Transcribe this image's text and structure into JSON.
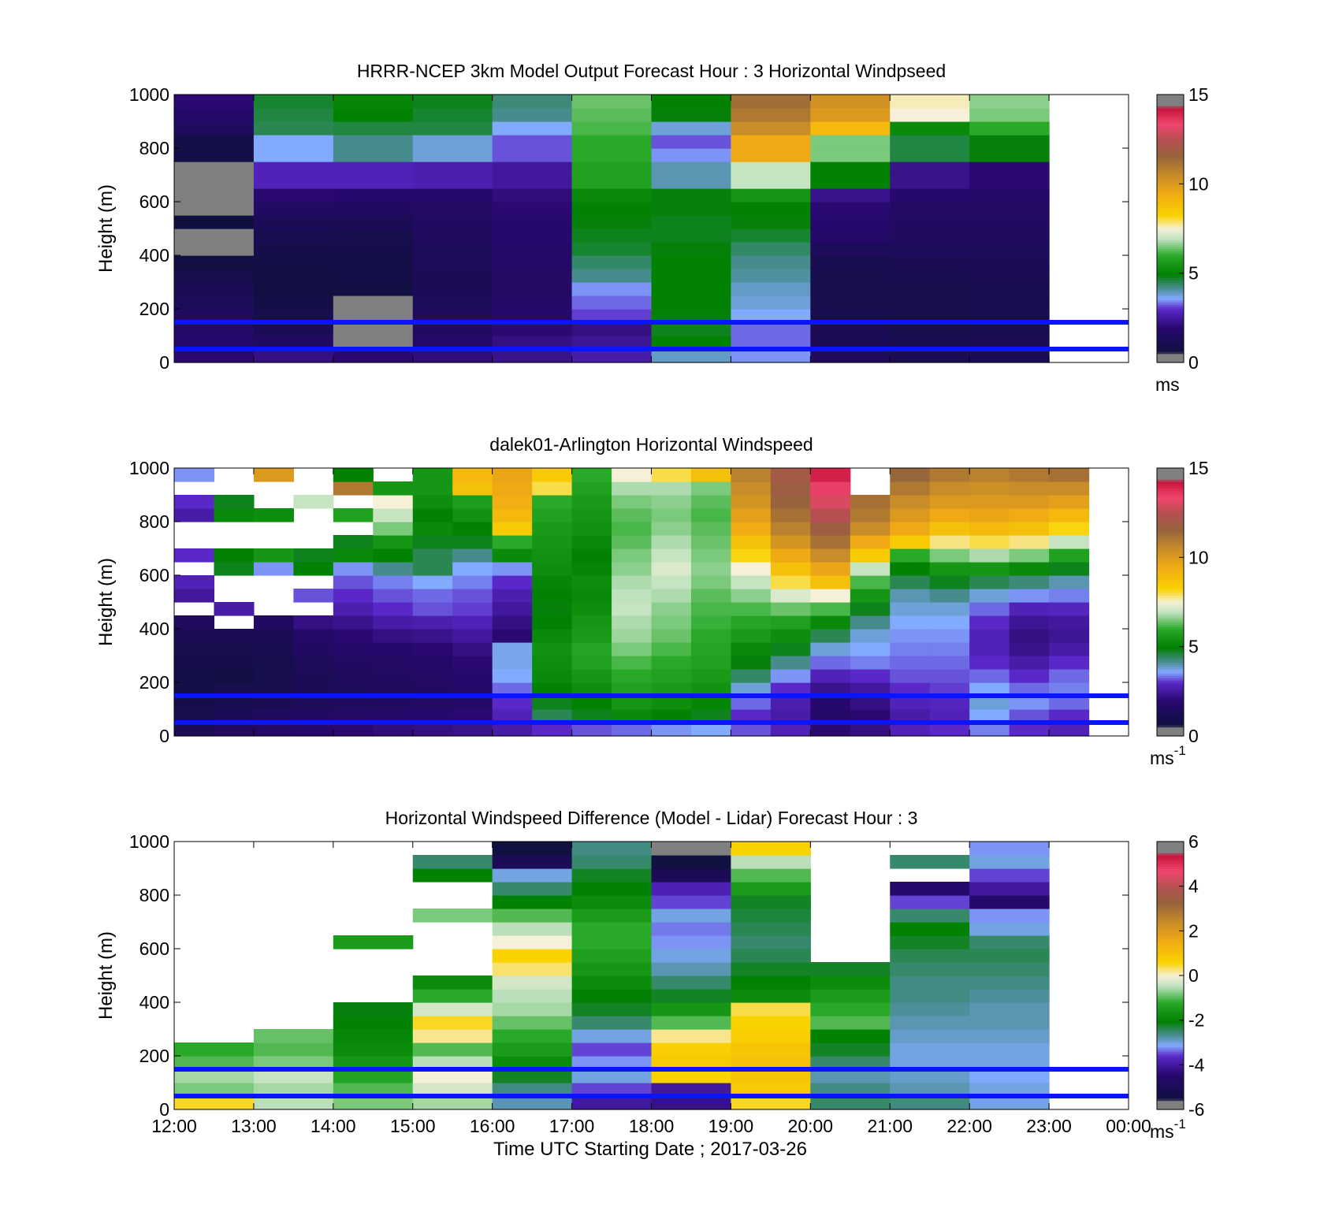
{
  "figure": {
    "xlabel": "Time UTC  Starting Date ; 2017-03-26"
  },
  "chart_data": [
    {
      "type": "heatmap",
      "title": "HRRR-NCEP 3km Model Output   Forecast Hour : 3 Horizontal Windpseed",
      "ylabel": "Height (m)",
      "unit_label": "ms",
      "unit_superscript": "",
      "ylim": [
        0,
        1000
      ],
      "yticks": [
        0,
        200,
        400,
        600,
        800,
        1000
      ],
      "xlim": [
        12,
        24
      ],
      "xticklabels": [],
      "colorbar": {
        "min": 0,
        "max": 15,
        "ticks": [
          0,
          5,
          10,
          15
        ]
      },
      "reference_heights_m": [
        50,
        150
      ],
      "x_hours": [
        12,
        13,
        14,
        15,
        16,
        17,
        18,
        19,
        20,
        21,
        22
      ],
      "y_heights_m": [
        0,
        50,
        100,
        150,
        200,
        250,
        300,
        350,
        400,
        450,
        500,
        550,
        600,
        650,
        700,
        750,
        800,
        850,
        900,
        950
      ],
      "values": [
        [
          2.0,
          1.9,
          1.8,
          1.6,
          1.4,
          1.2,
          1.0,
          0.7,
          0.1,
          0.1,
          0.6,
          0.1,
          0.1,
          0.1,
          0.1,
          0.8,
          0.8,
          1.5,
          1.8,
          2.0
        ],
        [
          2.2,
          1.6,
          1.3,
          1.0,
          0.8,
          0.7,
          0.7,
          0.8,
          0.9,
          1.1,
          1.3,
          1.6,
          2.0,
          2.8,
          2.8,
          3.6,
          3.6,
          4.5,
          4.6,
          4.7
        ],
        [
          2.0,
          0.1,
          0.1,
          0.1,
          0.1,
          0.7,
          0.8,
          0.8,
          0.9,
          1.0,
          1.3,
          1.6,
          1.9,
          2.8,
          2.8,
          4.2,
          4.2,
          4.6,
          5.0,
          5.1
        ],
        [
          2.1,
          1.8,
          1.6,
          1.5,
          1.4,
          1.3,
          1.3,
          1.4,
          1.4,
          1.5,
          1.6,
          1.7,
          1.9,
          2.7,
          2.7,
          3.8,
          3.8,
          4.6,
          4.7,
          4.8
        ],
        [
          2.3,
          2.2,
          2.0,
          1.9,
          1.8,
          1.7,
          1.7,
          1.8,
          1.8,
          1.9,
          1.9,
          2.0,
          2.1,
          2.5,
          2.5,
          3.2,
          3.2,
          3.6,
          4.2,
          4.3
        ],
        [
          2.6,
          2.4,
          2.2,
          3.1,
          3.3,
          3.5,
          4.2,
          4.4,
          4.7,
          4.8,
          4.9,
          5.0,
          5.2,
          5.8,
          5.8,
          6.0,
          6.0,
          6.2,
          6.3,
          6.4
        ],
        [
          3.9,
          5.0,
          4.8,
          4.9,
          5.0,
          5.0,
          5.0,
          5.0,
          4.9,
          4.8,
          4.8,
          4.9,
          4.9,
          4.0,
          4.0,
          3.5,
          3.2,
          3.8,
          4.9,
          5.0
        ],
        [
          3.5,
          3.3,
          3.3,
          3.6,
          3.8,
          3.9,
          4.1,
          4.2,
          4.4,
          4.7,
          4.9,
          5.0,
          5.5,
          7.0,
          7.0,
          9.5,
          9.5,
          10.5,
          11.0,
          11.3
        ],
        [
          1.5,
          1.3,
          1.2,
          1.1,
          1.0,
          1.0,
          1.0,
          1.1,
          1.4,
          1.8,
          1.9,
          2.0,
          2.3,
          5.0,
          5.0,
          6.5,
          6.5,
          9.0,
          10.0,
          10.3
        ],
        [
          1.2,
          1.1,
          1.0,
          1.0,
          1.0,
          1.0,
          1.1,
          1.2,
          1.4,
          1.5,
          1.6,
          1.7,
          1.9,
          2.3,
          2.3,
          4.6,
          4.6,
          5.2,
          7.5,
          7.6
        ],
        [
          1.3,
          1.2,
          1.1,
          1.1,
          1.1,
          1.1,
          1.2,
          1.3,
          1.4,
          1.5,
          1.6,
          1.7,
          1.8,
          2.0,
          2.0,
          4.9,
          4.9,
          6.0,
          6.5,
          6.6
        ]
      ]
    },
    {
      "type": "heatmap",
      "title": "dalek01-Arlington  Horizontal Windspeed",
      "ylabel": "Height (m)",
      "unit_label": "ms",
      "unit_superscript": "-1",
      "ylim": [
        0,
        1000
      ],
      "yticks": [
        0,
        200,
        400,
        600,
        800,
        1000
      ],
      "xlim": [
        12,
        24
      ],
      "xticklabels": [],
      "colorbar": {
        "min": 0,
        "max": 15,
        "ticks": [
          0,
          5,
          10,
          15
        ]
      },
      "reference_heights_m": [
        50,
        150
      ],
      "x_hours": [
        12.0,
        12.5,
        13.0,
        13.5,
        14.0,
        14.5,
        15.0,
        15.5,
        16.0,
        16.5,
        17.0,
        17.5,
        18.0,
        18.5,
        19.0,
        19.5,
        20.0,
        20.5,
        21.0,
        21.5,
        22.0,
        22.5,
        23.0
      ],
      "y_heights_m": [
        0,
        50,
        100,
        150,
        200,
        250,
        300,
        350,
        400,
        450,
        500,
        550,
        600,
        650,
        700,
        750,
        800,
        850,
        900,
        950
      ],
      "values": [
        [
          1.2,
          1.0,
          0.9,
          0.8,
          0.8,
          0.9,
          1.0,
          1.2,
          1.5,
          null,
          2.5,
          2.8,
          null,
          3.0,
          null,
          null,
          2.6,
          3.0,
          null,
          3.5
        ],
        [
          1.6,
          1.3,
          1.1,
          1.0,
          0.7,
          0.9,
          1.0,
          1.2,
          null,
          2.6,
          null,
          null,
          4.8,
          5.0,
          null,
          null,
          5.2,
          4.8,
          null,
          null
        ],
        [
          1.8,
          1.5,
          1.2,
          1.0,
          1.0,
          1.0,
          1.1,
          1.3,
          1.6,
          null,
          null,
          null,
          3.5,
          5.5,
          null,
          null,
          5.3,
          null,
          null,
          10.0
        ],
        [
          1.9,
          1.6,
          1.4,
          1.3,
          1.3,
          1.4,
          1.6,
          1.8,
          2.2,
          null,
          3.2,
          null,
          5.0,
          4.8,
          null,
          null,
          null,
          7.0,
          null,
          null
        ],
        [
          2.0,
          1.7,
          1.5,
          1.4,
          1.5,
          1.6,
          1.8,
          2.0,
          2.3,
          2.7,
          3.0,
          3.2,
          3.5,
          5.2,
          4.8,
          null,
          5.8,
          null,
          11.0,
          5.0
        ],
        [
          2.1,
          1.8,
          1.6,
          1.5,
          1.6,
          1.7,
          1.9,
          2.2,
          2.6,
          3.0,
          3.2,
          3.4,
          4.2,
          5.0,
          5.5,
          6.5,
          7.0,
          7.5,
          5.5,
          null
        ],
        [
          2.2,
          1.9,
          1.7,
          1.6,
          1.7,
          1.8,
          2.0,
          2.3,
          2.7,
          3.2,
          3.3,
          3.6,
          4.5,
          4.5,
          4.8,
          5.2,
          5.0,
          5.3,
          5.5,
          5.5
        ],
        [
          2.3,
          2.0,
          1.8,
          1.8,
          1.9,
          2.0,
          2.2,
          2.5,
          2.8,
          3.1,
          3.2,
          3.4,
          3.6,
          4.2,
          4.8,
          5.0,
          5.4,
          5.7,
          8.8,
          9.0
        ],
        [
          2.6,
          2.8,
          3.0,
          3.3,
          3.6,
          3.7,
          3.7,
          2.0,
          2.2,
          2.5,
          2.7,
          3.0,
          3.5,
          5.2,
          6.0,
          8.5,
          9.0,
          9.3,
          9.5,
          9.6
        ],
        [
          3.0,
          4.5,
          4.8,
          5.0,
          5.2,
          5.3,
          5.4,
          5.2,
          5.0,
          4.9,
          5.0,
          5.1,
          5.3,
          5.4,
          5.5,
          5.6,
          5.8,
          6.0,
          8.0,
          8.5
        ],
        [
          3.2,
          4.8,
          5.0,
          5.3,
          5.5,
          5.8,
          5.9,
          5.6,
          5.5,
          5.3,
          5.2,
          5.3,
          5.1,
          5.0,
          5.2,
          5.4,
          5.5,
          5.6,
          5.8,
          6.0
        ],
        [
          3.3,
          5.2,
          5.5,
          5.8,
          6.0,
          6.2,
          6.5,
          6.7,
          6.8,
          7.0,
          6.9,
          6.8,
          6.6,
          6.5,
          6.3,
          6.2,
          6.3,
          6.5,
          6.8,
          7.5
        ],
        [
          3.5,
          5.0,
          5.3,
          5.6,
          5.8,
          6.0,
          6.2,
          6.4,
          6.5,
          6.6,
          6.8,
          7.0,
          7.2,
          7.0,
          6.8,
          6.6,
          6.5,
          6.6,
          6.8,
          8.0
        ],
        [
          3.6,
          4.8,
          5.1,
          5.4,
          5.6,
          5.8,
          5.9,
          6.0,
          6.1,
          6.2,
          6.3,
          6.5,
          6.6,
          6.5,
          6.4,
          6.3,
          6.2,
          6.3,
          6.5,
          8.8
        ],
        [
          3.2,
          3.0,
          3.3,
          3.8,
          4.4,
          4.9,
          5.2,
          5.6,
          5.9,
          6.2,
          6.6,
          7.0,
          7.5,
          8.2,
          8.8,
          9.4,
          9.8,
          10.2,
          10.5,
          10.8
        ],
        [
          2.8,
          2.6,
          2.7,
          3.0,
          3.5,
          4.2,
          4.8,
          5.3,
          5.8,
          6.4,
          7.2,
          8.0,
          8.8,
          9.5,
          10.2,
          10.8,
          11.2,
          11.6,
          11.8,
          12.0
        ],
        [
          2.0,
          1.8,
          1.9,
          2.3,
          2.8,
          3.3,
          3.8,
          4.5,
          5.2,
          6.2,
          7.5,
          8.8,
          9.6,
          10.5,
          11.2,
          11.8,
          12.5,
          13.0,
          13.5,
          14.0
        ],
        [
          2.2,
          2.0,
          2.2,
          2.5,
          3.0,
          3.4,
          3.6,
          3.8,
          4.2,
          4.8,
          5.5,
          6.2,
          7.0,
          8.5,
          9.5,
          10.5,
          11.0,
          11.2,
          null,
          null
        ],
        [
          2.8,
          2.6,
          2.8,
          3.0,
          3.2,
          3.3,
          3.4,
          3.5,
          3.6,
          3.8,
          4.0,
          4.5,
          5.0,
          6.0,
          8.5,
          9.5,
          10.0,
          10.5,
          11.0,
          11.5
        ],
        [
          3.0,
          2.8,
          2.9,
          3.1,
          3.2,
          3.3,
          3.4,
          3.5,
          3.6,
          3.8,
          4.2,
          4.8,
          5.5,
          6.5,
          7.8,
          8.8,
          9.5,
          10.0,
          10.5,
          11.0
        ],
        [
          3.4,
          3.6,
          3.8,
          3.6,
          3.3,
          3.0,
          2.8,
          2.8,
          3.0,
          3.3,
          3.8,
          4.5,
          5.5,
          6.8,
          8.0,
          9.0,
          9.6,
          10.0,
          10.4,
          10.8
        ],
        [
          3.0,
          3.2,
          3.5,
          3.3,
          3.0,
          2.6,
          2.3,
          2.2,
          2.4,
          2.8,
          3.5,
          4.3,
          5.2,
          6.5,
          7.8,
          8.8,
          9.4,
          10.0,
          10.5,
          11.0
        ],
        [
          2.8,
          3.0,
          3.3,
          3.4,
          3.3,
          3.0,
          2.6,
          2.4,
          2.5,
          2.9,
          3.4,
          4.0,
          4.8,
          5.8,
          7.0,
          8.2,
          9.0,
          9.8,
          10.5,
          11.2
        ]
      ]
    },
    {
      "type": "heatmap",
      "title": "Horizontal Windspeed Difference (Model - Lidar) Forecast Hour : 3",
      "ylabel": "Height (m)",
      "unit_label": "ms",
      "unit_superscript": "-1",
      "ylim": [
        0,
        1000
      ],
      "yticks": [
        0,
        200,
        400,
        600,
        800,
        1000
      ],
      "xlim": [
        12,
        24
      ],
      "xticklabels": [
        "12:00",
        "13:00",
        "14:00",
        "15:00",
        "16:00",
        "17:00",
        "18:00",
        "19:00",
        "20:00",
        "21:00",
        "22:00",
        "23:00",
        "00:00"
      ],
      "colorbar": {
        "min": -6,
        "max": 6,
        "ticks": [
          -6,
          -4,
          -2,
          0,
          2,
          4,
          6
        ]
      },
      "reference_heights_m": [
        50,
        150
      ],
      "x_hours": [
        12,
        13,
        14,
        15,
        16,
        17,
        18,
        19,
        20,
        21,
        22
      ],
      "y_heights_m": [
        0,
        50,
        100,
        150,
        200,
        250,
        300,
        350,
        400,
        450,
        500,
        550,
        600,
        650,
        700,
        750,
        800,
        850,
        900,
        950
      ],
      "values": [
        [
          0.5,
          -0.8,
          -0.6,
          -1.0,
          -1.2,
          null,
          null,
          null,
          null,
          null,
          null,
          null,
          null,
          null,
          null,
          null,
          null,
          null,
          null,
          null
        ],
        [
          -0.5,
          -0.6,
          -0.4,
          -0.8,
          -1.0,
          -0.9,
          null,
          null,
          null,
          null,
          null,
          null,
          null,
          null,
          null,
          null,
          null,
          null,
          null,
          null
        ],
        [
          -0.8,
          -1.0,
          -1.3,
          -1.6,
          -1.8,
          -1.9,
          -2.0,
          -2.1,
          null,
          null,
          null,
          null,
          -1.5,
          null,
          null,
          null,
          null,
          null,
          null,
          null
        ],
        [
          -0.6,
          -0.3,
          0.0,
          -0.5,
          -1.0,
          0.2,
          0.5,
          -0.3,
          -1.2,
          -1.8,
          null,
          null,
          null,
          null,
          -0.8,
          null,
          null,
          -2.0,
          -2.5,
          null
        ],
        [
          -2.8,
          -2.6,
          -2.2,
          -1.8,
          -1.5,
          -1.2,
          -0.9,
          -0.6,
          -0.5,
          -0.3,
          0.3,
          0.6,
          0.0,
          -0.5,
          -1.0,
          -2.0,
          -2.5,
          -3.0,
          -5.0,
          -5.5
        ],
        [
          -4.0,
          -3.5,
          -3.0,
          -3.2,
          -3.5,
          -3.0,
          -2.5,
          -2.2,
          -2.0,
          -1.8,
          -1.6,
          -1.4,
          -1.2,
          -1.2,
          -1.5,
          -1.8,
          -2.0,
          -2.2,
          -2.5,
          -2.6
        ],
        [
          -4.2,
          -4.0,
          0.6,
          0.8,
          0.7,
          0.2,
          -1.0,
          -1.6,
          -2.2,
          -2.5,
          -2.8,
          -3.0,
          -3.2,
          -3.3,
          -3.0,
          -3.5,
          -3.8,
          -5.0,
          -5.5,
          -5.8
        ],
        [
          0.5,
          0.8,
          0.9,
          1.0,
          0.9,
          0.7,
          0.6,
          0.4,
          -1.8,
          -2.0,
          -2.2,
          -2.4,
          -2.5,
          -2.4,
          -2.3,
          -2.2,
          -1.5,
          -1.0,
          -0.5,
          0.6
        ],
        [
          -2.5,
          -2.6,
          -2.8,
          -2.5,
          -2.2,
          -2.0,
          -1.0,
          -1.2,
          -1.5,
          -1.8,
          -2.2,
          null,
          null,
          null,
          null,
          null,
          null,
          null,
          null,
          null
        ],
        [
          -2.6,
          -2.8,
          -2.9,
          -3.0,
          -3.0,
          -2.9,
          -2.8,
          -2.7,
          -2.6,
          -2.6,
          -2.5,
          -2.4,
          -2.2,
          -2.0,
          -2.5,
          -3.5,
          -4.5,
          null,
          -2.5,
          null
        ],
        [
          -3.0,
          -3.0,
          -3.1,
          -3.0,
          -3.0,
          -2.9,
          -2.8,
          -2.8,
          -2.7,
          -2.6,
          -2.5,
          -2.4,
          -2.5,
          -3.0,
          -3.2,
          -4.5,
          -4.0,
          -3.5,
          -3.0,
          -3.2
        ]
      ]
    }
  ]
}
